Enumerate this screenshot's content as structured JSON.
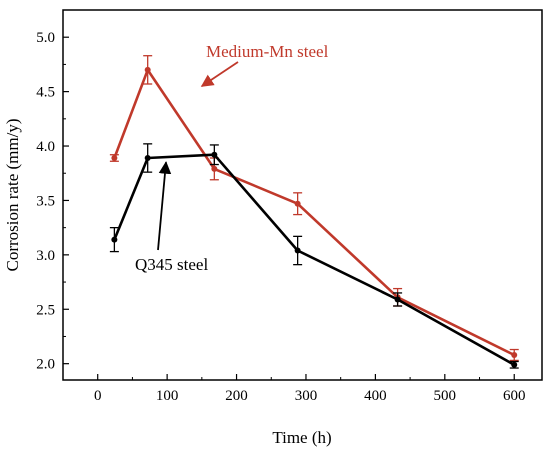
{
  "chart_data": {
    "type": "line",
    "xlabel": "Time (h)",
    "ylabel": "Corrosion rate (mm/y)",
    "xlim": [
      -50,
      640
    ],
    "ylim": [
      1.85,
      5.25
    ],
    "xticks": [
      0,
      100,
      200,
      300,
      400,
      500,
      600
    ],
    "yticks": [
      2.0,
      2.5,
      3.0,
      3.5,
      4.0,
      4.5,
      5.0
    ],
    "xtick_labels": [
      "0",
      "100",
      "200",
      "300",
      "400",
      "500",
      "600"
    ],
    "ytick_labels": [
      "2.0",
      "2.5",
      "3.0",
      "3.5",
      "4.0",
      "4.5",
      "5.0"
    ],
    "grid": false,
    "legend": "none",
    "series": [
      {
        "name": "Medium-Mn steel",
        "color": "#c0392b",
        "x": [
          24,
          72,
          168,
          288,
          432,
          600
        ],
        "y": [
          3.89,
          4.7,
          3.79,
          3.47,
          2.61,
          2.08
        ],
        "error": [
          0.03,
          0.13,
          0.1,
          0.1,
          0.08,
          0.05
        ]
      },
      {
        "name": "Q345 steel",
        "color": "#000000",
        "x": [
          24,
          72,
          168,
          288,
          432,
          600
        ],
        "y": [
          3.14,
          3.89,
          3.92,
          3.04,
          2.59,
          1.99
        ],
        "error": [
          0.11,
          0.13,
          0.09,
          0.13,
          0.06,
          0.03
        ]
      }
    ],
    "annotations": [
      {
        "text": "Medium-Mn steel",
        "color": "#c0392b",
        "arrow_to": [
          150,
          4.55
        ]
      },
      {
        "text": "Q345 steel",
        "color": "#000000",
        "arrow_to": [
          100,
          3.85
        ]
      }
    ]
  }
}
